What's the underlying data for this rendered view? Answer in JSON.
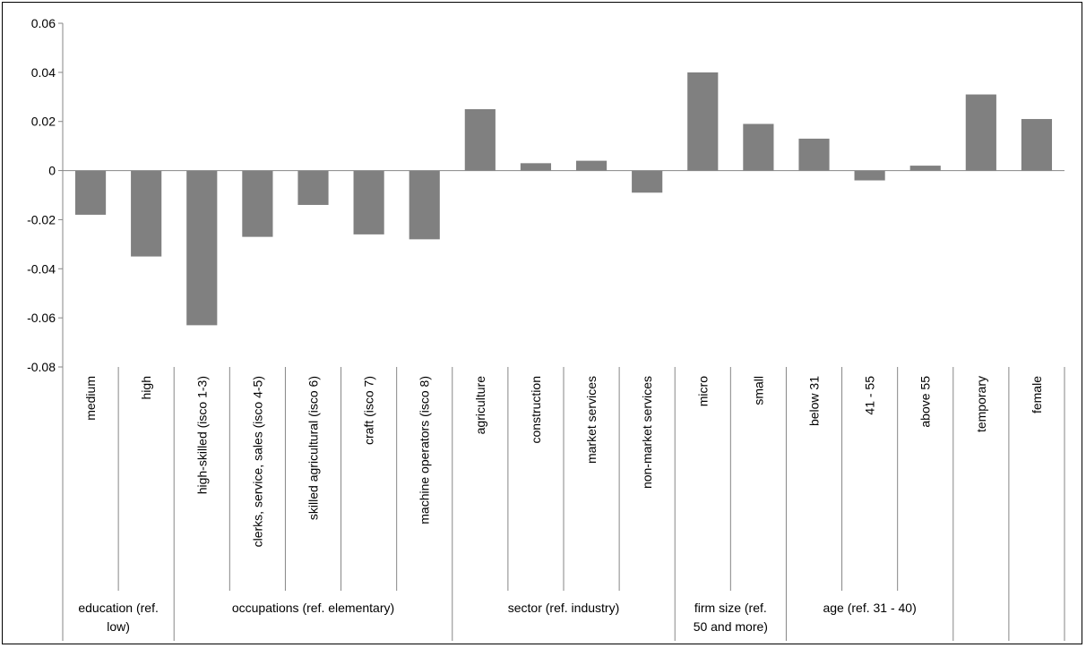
{
  "chart_data": {
    "type": "bar",
    "title": "",
    "xlabel": "",
    "ylabel": "",
    "ylim": [
      -0.08,
      0.06
    ],
    "yticks": [
      "0.06",
      "0.04",
      "0.02",
      "0",
      "-0.02",
      "-0.04",
      "-0.06",
      "-0.08"
    ],
    "grid": false,
    "legend": "none",
    "bar_color": "#808080",
    "categories": [
      "medium",
      "high",
      "high-skilled (isco 1-3)",
      "clerks, service, sales (isco 4-5)",
      "skilled agricultural (isco 6)",
      "craft (isco 7)",
      "machine operators (isco 8)",
      "agriculture",
      "construction",
      "market services",
      "non-market services",
      "micro",
      "small",
      "below 31",
      "41 - 55",
      "above 55",
      "temporary",
      "female"
    ],
    "values": [
      -0.018,
      -0.035,
      -0.063,
      -0.027,
      -0.014,
      -0.026,
      -0.028,
      0.025,
      0.003,
      0.004,
      -0.009,
      0.04,
      0.019,
      0.013,
      -0.004,
      0.002,
      0.031,
      0.021
    ],
    "groups": [
      {
        "label": [
          "education (ref.",
          "low)"
        ],
        "start": 0,
        "end": 1
      },
      {
        "label": [
          "occupations (ref. elementary)"
        ],
        "start": 2,
        "end": 6
      },
      {
        "label": [
          "sector (ref. industry)"
        ],
        "start": 7,
        "end": 10
      },
      {
        "label": [
          "firm size (ref.",
          "50 and more)"
        ],
        "start": 11,
        "end": 12
      },
      {
        "label": [
          "age (ref. 31 - 40)"
        ],
        "start": 13,
        "end": 15
      },
      {
        "label": [
          ""
        ],
        "start": 16,
        "end": 16
      },
      {
        "label": [
          ""
        ],
        "start": 17,
        "end": 17
      }
    ]
  }
}
